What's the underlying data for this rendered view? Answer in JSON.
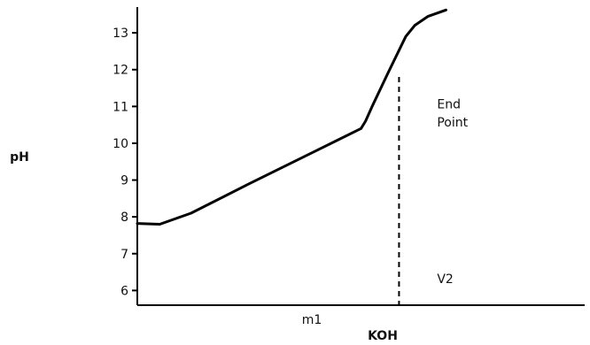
{
  "chart_data": {
    "type": "line",
    "title": "",
    "xlabel": "KOH",
    "ylabel": "pH",
    "y_ticks": [
      6,
      7,
      8,
      9,
      10,
      11,
      12,
      13
    ],
    "ylim": [
      5.6,
      13.7
    ],
    "xlim": [
      0,
      1
    ],
    "grid": false,
    "x_tick_label": "m1",
    "series": [
      {
        "x": [
          0.0,
          0.05,
          0.12,
          0.25,
          0.4,
          0.5,
          0.51,
          0.525,
          0.56,
          0.6,
          0.62,
          0.65,
          0.69
        ],
        "y": [
          7.82,
          7.8,
          8.1,
          8.9,
          9.8,
          10.4,
          10.6,
          11.0,
          11.9,
          12.9,
          13.2,
          13.45,
          13.62
        ]
      }
    ],
    "annotations": [
      {
        "text": "End",
        "x": 0.67,
        "y": 10.95
      },
      {
        "text": "Point",
        "x": 0.67,
        "y": 10.45
      },
      {
        "text": "V2",
        "x": 0.67,
        "y": 6.2
      }
    ],
    "endpoint_x": 0.585,
    "endpoint_y": 11.8
  }
}
